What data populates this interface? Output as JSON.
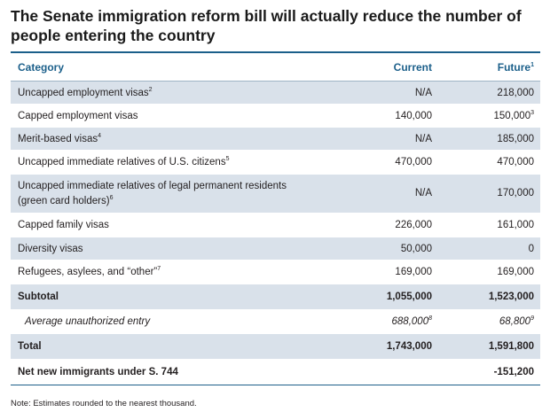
{
  "title": "The Senate immigration reform bill will actually reduce the number of people entering the country",
  "header": {
    "category": "Category",
    "current": "Current",
    "future": "Future",
    "future_note": "1"
  },
  "rows": [
    {
      "category": "Uncapped employment visas",
      "cat_note": "2",
      "current": "N/A",
      "future": "218,000",
      "shaded": true
    },
    {
      "category": "Capped employment visas",
      "cat_note": "",
      "current": "140,000",
      "future": "150,000",
      "future_note": "3",
      "shaded": false
    },
    {
      "category": "Merit-based visas",
      "cat_note": "4",
      "current": "N/A",
      "future": "185,000",
      "shaded": true
    },
    {
      "category": "Uncapped immediate relatives of U.S. citizens",
      "cat_note": "5",
      "current": "470,000",
      "future": "470,000",
      "shaded": false
    },
    {
      "category_line1": "Uncapped immediate relatives of legal permanent residents",
      "category_line2": "(green card holders)",
      "cat_note": "6",
      "current": "N/A",
      "future": "170,000",
      "shaded": true
    },
    {
      "category": "Capped family visas",
      "cat_note": "",
      "current": "226,000",
      "future": "161,000",
      "shaded": false
    },
    {
      "category": "Diversity visas",
      "cat_note": "",
      "current": "50,000",
      "future": "0",
      "shaded": true
    },
    {
      "category": "Refugees, asylees, and “other”",
      "cat_note": "7",
      "current": "169,000",
      "future": "169,000",
      "shaded": false
    }
  ],
  "subtotal": {
    "label": "Subtotal",
    "current": "1,055,000",
    "future": "1,523,000"
  },
  "unauthorized": {
    "label": "Average unauthorized entry",
    "current": "688,000",
    "current_note": "8",
    "future": "68,800",
    "future_note": "9"
  },
  "total": {
    "label": "Total",
    "current": "1,743,000",
    "future": "1,591,800"
  },
  "net": {
    "label": "Net new immigrants under S. 744",
    "current": "",
    "future": "-151,200"
  },
  "note": "Note: Estimates rounded to the nearest thousand.",
  "colors": {
    "accent": "#1b5f8a",
    "shade": "#d9e1ea"
  }
}
